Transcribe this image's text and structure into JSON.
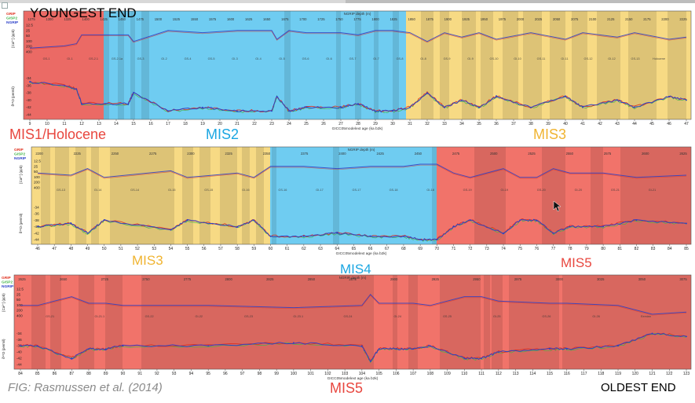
{
  "header": {
    "youngest": "YOUNGEST END",
    "oldest": "OLDEST END",
    "credit": "FIG: Rasmussen et al. (2014)"
  },
  "colors": {
    "holocene": "#e8504a",
    "warm_red": "#ef5a50",
    "cold_blue": "#56c3ef",
    "mis3_yellow": "#f6d36e",
    "stadial_shade": "#d7a550",
    "grip": "#e0301e",
    "gisp2": "#43b54a",
    "ngrip": "#2a3fc8"
  },
  "legend": [
    "GRIP",
    "GISP2",
    "NGRIP"
  ],
  "panels": [
    {
      "depth_title": "NGRIP depth (m)",
      "age_title": "GICC05modelext age (ka b2k)",
      "depth_ticks": [
        "1275",
        "1300",
        "1325",
        "1400",
        "1425",
        "1450",
        "1475",
        "1500",
        "1525",
        "1550",
        "1575",
        "1600",
        "1625",
        "1650",
        "1675",
        "1700",
        "1725",
        "1750",
        "1775",
        "1800",
        "1825",
        "1850",
        "1875",
        "1900",
        "1925",
        "1950",
        "1975",
        "2000",
        "2025",
        "2050",
        "2075",
        "2100",
        "2125",
        "2150",
        "2175",
        "2200",
        "2225"
      ],
      "age_ticks": [
        "9",
        "10",
        "11",
        "12",
        "13",
        "14",
        "15",
        "16",
        "17",
        "18",
        "19",
        "20",
        "21",
        "22",
        "23",
        "24",
        "25",
        "26",
        "27",
        "28",
        "29",
        "30",
        "31",
        "32",
        "33",
        "34",
        "35",
        "36",
        "37",
        "38",
        "39",
        "40",
        "41",
        "42",
        "43",
        "44",
        "45",
        "46",
        "47"
      ],
      "ca_axis": {
        "label": "[Ca²⁺] (ppb)",
        "ticks": [
          "12.5",
          "25",
          "50",
          "100",
          "200",
          "400"
        ]
      },
      "d18o_axis": {
        "label": "δ¹⁸O (permil)",
        "ticks": [
          "-34",
          "-36",
          "-38",
          "-40",
          "-42",
          "-44"
        ]
      },
      "stage_labels": [
        {
          "text": "MIS1/Holocene",
          "color": "#e8473f"
        },
        {
          "text": "MIS2",
          "color": "#1aa6e2"
        },
        {
          "text": "MIS3",
          "color": "#f0b431"
        }
      ],
      "events": [
        "GS-1",
        "GI-1",
        "GS-2.1",
        "GS-2.1a",
        "GS-3",
        "GI-2",
        "GS-4",
        "GS-5",
        "GI-3",
        "GI-4",
        "GI-5",
        "GS-6",
        "GI-6",
        "GS-7",
        "GI-7",
        "GS-8",
        "GI-8",
        "GS-9",
        "GI-9",
        "GS-10",
        "GI-10",
        "GS-11",
        "GI-11",
        "GS-12",
        "GI-12",
        "GS-13",
        "Holocene"
      ]
    },
    {
      "depth_title": "NGRIP depth (m)",
      "age_title": "GICC05modelext age (ka b2k)",
      "depth_ticks": [
        "2200",
        "2225",
        "2250",
        "2275",
        "2300",
        "2325",
        "2350",
        "2375",
        "2400",
        "2425",
        "2450",
        "2475",
        "2500",
        "2525",
        "2550",
        "2575",
        "2600",
        "2625"
      ],
      "age_ticks": [
        "46",
        "47",
        "48",
        "49",
        "50",
        "51",
        "52",
        "53",
        "54",
        "55",
        "56",
        "57",
        "58",
        "59",
        "60",
        "61",
        "62",
        "63",
        "64",
        "65",
        "66",
        "67",
        "68",
        "69",
        "70",
        "71",
        "72",
        "73",
        "74",
        "75",
        "76",
        "77",
        "78",
        "79",
        "80",
        "81",
        "82",
        "83",
        "84",
        "85"
      ],
      "ca_axis": {
        "label": "[Ca²⁺] (ppb)",
        "ticks": [
          "12.5",
          "25",
          "50",
          "100",
          "200",
          "400"
        ]
      },
      "d18o_axis": {
        "label": "δ¹⁸O (permil)",
        "ticks": [
          "-34",
          "-36",
          "-38",
          "-40",
          "-42",
          "-44"
        ]
      },
      "stage_labels": [
        {
          "text": "MIS3",
          "color": "#f0b431"
        },
        {
          "text": "MIS4",
          "color": "#1aa6e2"
        },
        {
          "text": "MIS5",
          "color": "#e8473f"
        }
      ],
      "events": [
        "GS-13",
        "GI-14",
        "GS-14",
        "GI-15",
        "GS-15",
        "GI-16",
        "GS-16",
        "GI-17",
        "GS-17",
        "GS-18",
        "GI-18",
        "GS-19",
        "GI-19",
        "GS-20",
        "GI-20",
        "GS-21",
        "GI-21"
      ]
    },
    {
      "depth_title": "NGRIP depth (m)",
      "age_title": "GICC05modelext age (ka b2k)",
      "depth_ticks": [
        "2625",
        "2650",
        "2725",
        "2750",
        "2775",
        "2800",
        "2825",
        "2850",
        "2875",
        "2900",
        "2925",
        "2950",
        "2975",
        "3000",
        "3025",
        "3050",
        "3075"
      ],
      "age_ticks": [
        "84",
        "85",
        "86",
        "87",
        "88",
        "89",
        "90",
        "91",
        "92",
        "93",
        "94",
        "95",
        "96",
        "97",
        "98",
        "99",
        "100",
        "101",
        "102",
        "103",
        "104",
        "105",
        "106",
        "107",
        "108",
        "109",
        "110",
        "111",
        "112",
        "113",
        "114",
        "115",
        "116",
        "117",
        "118",
        "119",
        "120",
        "121",
        "122",
        "123"
      ],
      "ca_axis": {
        "label": "[Ca²⁺] (ppb)",
        "ticks": [
          "12.5",
          "25",
          "50",
          "100",
          "200",
          "400"
        ]
      },
      "d18o_axis": {
        "label": "δ¹⁸O (permil)",
        "ticks": [
          "-34",
          "-36",
          "-38",
          "-40",
          "-42",
          "-44"
        ]
      },
      "stage_labels": [
        {
          "text": "MIS5",
          "color": "#e8473f"
        }
      ],
      "events": [
        "GS-21",
        "GI-21.1",
        "GS-22",
        "GI-22",
        "GS-23",
        "GI-23.1",
        "GS-24",
        "GI-24",
        "GS-25",
        "GI-25",
        "GS-26",
        "GI-26",
        "Eemian"
      ]
    }
  ],
  "chart_data": [
    {
      "type": "line",
      "x_name": "GICC05modelext age (ka b2k)",
      "xlim": [
        9,
        47
      ],
      "series": [
        {
          "name": "NGRIP",
          "x": [
            9,
            11,
            11.7,
            12,
            14.7,
            15,
            17,
            19,
            21,
            23,
            23.3,
            24,
            25,
            27,
            28,
            29,
            30,
            31,
            32,
            33,
            34,
            35,
            36,
            38,
            40,
            41,
            43,
            44,
            46,
            47
          ],
          "values": [
            -35,
            -36,
            -37,
            -41,
            -41,
            -38,
            -43,
            -42,
            -43,
            -43,
            -39,
            -43,
            -42,
            -42,
            -41,
            -43,
            -43,
            -42,
            -38,
            -42,
            -40,
            -42,
            -39,
            -42,
            -39,
            -42,
            -40,
            -42,
            -39,
            -40
          ]
        }
      ]
    },
    {
      "type": "line",
      "x_name": "GICC05modelext age (ka b2k)",
      "xlim": [
        46,
        85
      ],
      "series": [
        {
          "name": "NGRIP",
          "x": [
            46,
            48,
            49,
            50,
            54,
            55,
            58,
            59,
            60,
            62,
            64,
            66,
            68,
            69,
            70,
            71,
            72,
            74,
            75,
            76,
            77,
            78,
            80,
            82,
            85
          ],
          "values": [
            -40,
            -39,
            -42,
            -38,
            -41,
            -38,
            -40,
            -38,
            -43,
            -43,
            -42,
            -43,
            -43,
            -44,
            -44,
            -40,
            -38,
            -42,
            -38,
            -38,
            -42,
            -40,
            -40,
            -38,
            -39
          ]
        }
      ]
    },
    {
      "type": "line",
      "x_name": "GICC05modelext age (ka b2k)",
      "xlim": [
        84,
        123
      ],
      "series": [
        {
          "name": "NGRIP",
          "x": [
            84,
            85,
            87,
            88,
            89,
            90,
            95,
            100,
            104,
            104.5,
            105,
            106,
            107,
            108,
            110,
            111,
            112,
            115,
            116,
            119,
            121,
            123
          ],
          "values": [
            -38,
            -38,
            -42,
            -39,
            -39,
            -38,
            -38,
            -37,
            -38,
            -43,
            -39,
            -39,
            -39,
            -38,
            -42,
            -42,
            -40,
            -39,
            -39,
            -38,
            -34,
            -35
          ]
        }
      ]
    }
  ]
}
